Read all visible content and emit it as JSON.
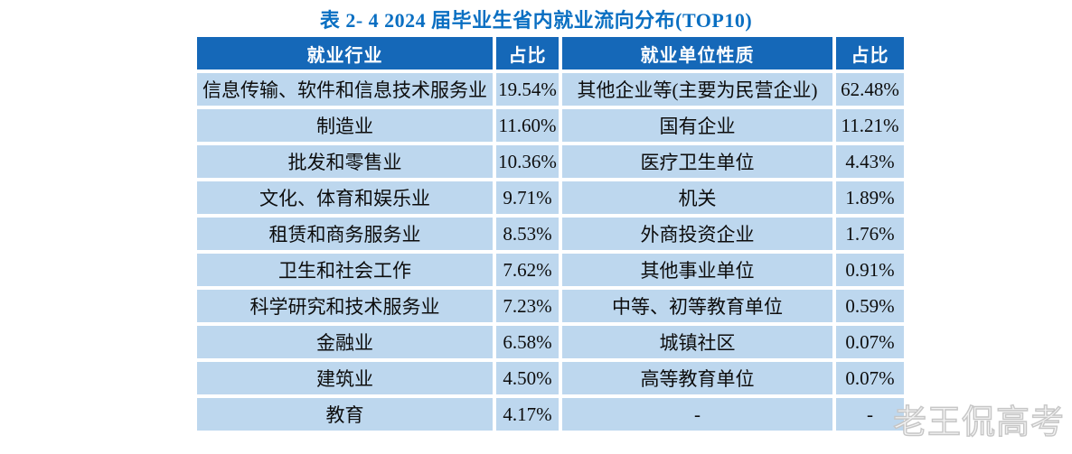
{
  "title": "表 2- 4 2024 届毕业生省内就业流向分布(TOP10)",
  "watermark": "老王侃高考",
  "colors": {
    "header_bg": "#1568b8",
    "row_bg": "#bdd7ee",
    "title_color": "#0a6fc2",
    "gutter": "#ffffff"
  },
  "table": {
    "headers": [
      "就业行业",
      "占比",
      "就业单位性质",
      "占比"
    ],
    "rows": [
      [
        "信息传输、软件和信息技术服务业",
        "19.54%",
        "其他企业等(主要为民营企业)",
        "62.48%"
      ],
      [
        "制造业",
        "11.60%",
        "国有企业",
        "11.21%"
      ],
      [
        "批发和零售业",
        "10.36%",
        "医疗卫生单位",
        "4.43%"
      ],
      [
        "文化、体育和娱乐业",
        "9.71%",
        "机关",
        "1.89%"
      ],
      [
        "租赁和商务服务业",
        "8.53%",
        "外商投资企业",
        "1.76%"
      ],
      [
        "卫生和社会工作",
        "7.62%",
        "其他事业单位",
        "0.91%"
      ],
      [
        "科学研究和技术服务业",
        "7.23%",
        "中等、初等教育单位",
        "0.59%"
      ],
      [
        "金融业",
        "6.58%",
        "城镇社区",
        "0.07%"
      ],
      [
        "建筑业",
        "4.50%",
        "高等教育单位",
        "0.07%"
      ],
      [
        "教育",
        "4.17%",
        "-",
        "-"
      ]
    ]
  },
  "chart_data": {
    "type": "table",
    "title": "表 2- 4 2024 届毕业生省内就业流向分布(TOP10)",
    "columns": [
      "就业行业",
      "占比",
      "就业单位性质",
      "占比"
    ],
    "series": [
      {
        "name": "就业行业占比",
        "unit": "%",
        "categories": [
          "信息传输、软件和信息技术服务业",
          "制造业",
          "批发和零售业",
          "文化、体育和娱乐业",
          "租赁和商务服务业",
          "卫生和社会工作",
          "科学研究和技术服务业",
          "金融业",
          "建筑业",
          "教育"
        ],
        "values": [
          19.54,
          11.6,
          10.36,
          9.71,
          8.53,
          7.62,
          7.23,
          6.58,
          4.5,
          4.17
        ]
      },
      {
        "name": "就业单位性质占比",
        "unit": "%",
        "categories": [
          "其他企业等(主要为民营企业)",
          "国有企业",
          "医疗卫生单位",
          "机关",
          "外商投资企业",
          "其他事业单位",
          "中等、初等教育单位",
          "城镇社区",
          "高等教育单位",
          "-"
        ],
        "values": [
          62.48,
          11.21,
          4.43,
          1.89,
          1.76,
          0.91,
          0.59,
          0.07,
          0.07,
          null
        ]
      }
    ]
  }
}
